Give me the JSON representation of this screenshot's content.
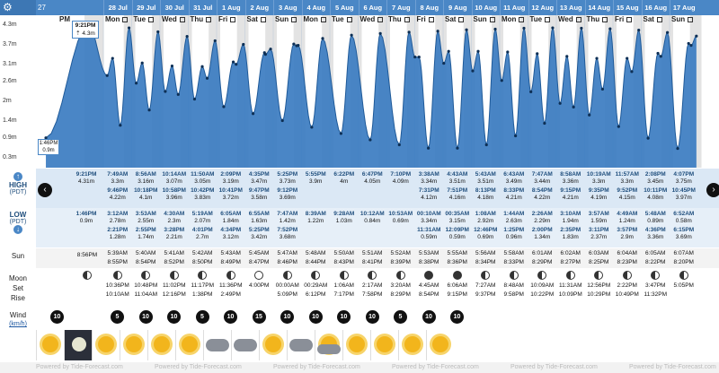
{
  "header": {
    "first_date": "27 Jul",
    "dates": [
      "28 Jul",
      "29 Jul",
      "30 Jul",
      "31 Jul",
      "1 Aug",
      "2 Aug",
      "3 Aug",
      "4 Aug",
      "5 Aug",
      "6 Aug",
      "7 Aug",
      "8 Aug",
      "9 Aug",
      "10 Aug",
      "11 Aug",
      "12 Aug",
      "13 Aug",
      "14 Aug",
      "15 Aug",
      "16 Aug",
      "17 Aug"
    ],
    "first_dayname": "PM",
    "daynames": [
      "Mon",
      "Tue",
      "Wed",
      "Thu",
      "Fri",
      "Sat",
      "Sun",
      "Mon",
      "Tue",
      "Wed",
      "Thu",
      "Fri",
      "Sat",
      "Sun",
      "Mon",
      "Tue",
      "Wed",
      "Thu",
      "Fri",
      "Sat",
      "Sun"
    ]
  },
  "axis": {
    "ticks": [
      "4.3m",
      "3.7m",
      "3.1m",
      "2.6m",
      "2m",
      "1.4m",
      "0.9m",
      "0.3m"
    ]
  },
  "tooltips": {
    "high": {
      "time": "9:21PM",
      "height": "⇡ 4.3m"
    },
    "low": {
      "time": "1:46PM",
      "height": "0.9m"
    }
  },
  "labels": {
    "high": "HIGH",
    "high_sub": "(PDT)",
    "low": "LOW",
    "low_sub": "(PDT)",
    "sun": "Sun",
    "moon": "Moon",
    "set": "Set",
    "rise": "Rise",
    "wind": "Wind",
    "wind_unit": "(km/h)"
  },
  "high_tides": [
    {
      "a": "9:21PM",
      "b": "4.31m",
      "c": "",
      "d": ""
    },
    {
      "a": "7:49AM",
      "b": "3.3m",
      "c": "9:46PM",
      "d": "4.22m"
    },
    {
      "a": "8:56AM",
      "b": "3.16m",
      "c": "10:18PM",
      "d": "4.1m"
    },
    {
      "a": "10:14AM",
      "b": "3.07m",
      "c": "10:58PM",
      "d": "3.96m"
    },
    {
      "a": "11:50AM",
      "b": "3.05m",
      "c": "10:42PM",
      "d": "3.83m"
    },
    {
      "a": "2:09PM",
      "b": "3.19m",
      "c": "10:41PM",
      "d": "3.72m"
    },
    {
      "a": "4:35PM",
      "b": "3.47m",
      "c": "9:47PM",
      "d": "3.58m"
    },
    {
      "a": "5:25PM",
      "b": "3.73m",
      "c": "9:12PM",
      "d": "3.69m"
    },
    {
      "a": "5:55PM",
      "b": "3.9m",
      "c": "",
      "d": ""
    },
    {
      "a": "6:22PM",
      "b": "4m",
      "c": "",
      "d": ""
    },
    {
      "a": "6:47PM",
      "b": "4.05m",
      "c": "",
      "d": ""
    },
    {
      "a": "7:10PM",
      "b": "4.09m",
      "c": "",
      "d": ""
    },
    {
      "a": "3:38AM",
      "b": "3.34m",
      "c": "7:31PM",
      "d": "4.12m"
    },
    {
      "a": "4:43AM",
      "b": "3.51m",
      "c": "7:51PM",
      "d": "4.16m"
    },
    {
      "a": "5:43AM",
      "b": "3.51m",
      "c": "8:13PM",
      "d": "4.18m"
    },
    {
      "a": "6:43AM",
      "b": "3.49m",
      "c": "8:33PM",
      "d": "4.21m"
    },
    {
      "a": "7:47AM",
      "b": "3.44m",
      "c": "8:54PM",
      "d": "4.22m"
    },
    {
      "a": "8:58AM",
      "b": "3.36m",
      "c": "9:15PM",
      "d": "4.21m"
    },
    {
      "a": "10:19AM",
      "b": "3.3m",
      "c": "9:35PM",
      "d": "4.19m"
    },
    {
      "a": "11:57AM",
      "b": "3.3m",
      "c": "9:52PM",
      "d": "4.15m"
    },
    {
      "a": "2:08PM",
      "b": "3.45m",
      "c": "10:11PM",
      "d": "4.08m"
    },
    {
      "a": "4:07PM",
      "b": "3.75m",
      "c": "10:45PM",
      "d": "3.97m"
    }
  ],
  "low_tides": [
    {
      "a": "1:46PM",
      "b": "0.9m",
      "c": "",
      "d": ""
    },
    {
      "a": "3:12AM",
      "b": "2.78m",
      "c": "2:21PM",
      "d": "1.28m"
    },
    {
      "a": "3:53AM",
      "b": "2.55m",
      "c": "2:55PM",
      "d": "1.74m"
    },
    {
      "a": "4:30AM",
      "b": "2.3m",
      "c": "3:28PM",
      "d": "2.21m"
    },
    {
      "a": "5:19AM",
      "b": "2.07m",
      "c": "4:01PM",
      "d": "2.7m"
    },
    {
      "a": "6:05AM",
      "b": "1.84m",
      "c": "4:34PM",
      "d": "3.12m"
    },
    {
      "a": "6:55AM",
      "b": "1.63m",
      "c": "5:25PM",
      "d": "3.42m"
    },
    {
      "a": "7:47AM",
      "b": "1.42m",
      "c": "7:52PM",
      "d": "3.68m"
    },
    {
      "a": "8:39AM",
      "b": "1.22m",
      "c": "",
      "d": ""
    },
    {
      "a": "9:28AM",
      "b": "1.03m",
      "c": "",
      "d": ""
    },
    {
      "a": "10:12AM",
      "b": "0.84m",
      "c": "",
      "d": ""
    },
    {
      "a": "10:53AM",
      "b": "0.69m",
      "c": "",
      "d": ""
    },
    {
      "a": "00:10AM",
      "b": "3.34m",
      "c": "11:31AM",
      "d": "0.59m"
    },
    {
      "a": "00:35AM",
      "b": "3.15m",
      "c": "12:09PM",
      "d": "0.59m"
    },
    {
      "a": "1:08AM",
      "b": "2.92m",
      "c": "12:46PM",
      "d": "0.69m"
    },
    {
      "a": "1:44AM",
      "b": "2.63m",
      "c": "1:25PM",
      "d": "0.96m"
    },
    {
      "a": "2:26AM",
      "b": "2.29m",
      "c": "2:00PM",
      "d": "1.34m"
    },
    {
      "a": "3:10AM",
      "b": "1.94m",
      "c": "2:35PM",
      "d": "1.83m"
    },
    {
      "a": "3:57AM",
      "b": "1.59m",
      "c": "3:11PM",
      "d": "2.37m"
    },
    {
      "a": "4:49AM",
      "b": "1.24m",
      "c": "3:57PM",
      "d": "2.9m"
    },
    {
      "a": "5:48AM",
      "b": "0.89m",
      "c": "4:36PM",
      "d": "3.36m"
    },
    {
      "a": "6:52AM",
      "b": "0.58m",
      "c": "6:15PM",
      "d": "3.69m"
    }
  ],
  "sun": [
    {
      "rise": "",
      "set": "8:56PM"
    },
    {
      "rise": "5:39AM",
      "set": "8:55PM"
    },
    {
      "rise": "5:40AM",
      "set": "8:54PM"
    },
    {
      "rise": "5:41AM",
      "set": "8:52PM"
    },
    {
      "rise": "5:42AM",
      "set": "8:50PM"
    },
    {
      "rise": "5:43AM",
      "set": "8:49PM"
    },
    {
      "rise": "5:45AM",
      "set": "8:47PM"
    },
    {
      "rise": "5:47AM",
      "set": "8:46PM"
    },
    {
      "rise": "5:48AM",
      "set": "8:44PM"
    },
    {
      "rise": "5:50AM",
      "set": "8:43PM"
    },
    {
      "rise": "5:51AM",
      "set": "8:41PM"
    },
    {
      "rise": "5:52AM",
      "set": "8:39PM"
    },
    {
      "rise": "5:53AM",
      "set": "8:38PM"
    },
    {
      "rise": "5:55AM",
      "set": "8:36PM"
    },
    {
      "rise": "5:56AM",
      "set": "8:34PM"
    },
    {
      "rise": "5:58AM",
      "set": "8:33PM"
    },
    {
      "rise": "6:01AM",
      "set": "8:29PM"
    },
    {
      "rise": "6:02AM",
      "set": "8:27PM"
    },
    {
      "rise": "6:03AM",
      "set": "8:25PM"
    },
    {
      "rise": "6:04AM",
      "set": "8:23PM"
    },
    {
      "rise": "6:05AM",
      "set": "8:22PM"
    },
    {
      "rise": "6:07AM",
      "set": "8:20PM"
    }
  ],
  "moon": [
    {
      "phase": "waxing",
      "set": "",
      "rise": ""
    },
    {
      "phase": "waxing",
      "set": "10:36PM",
      "rise": "10:10AM"
    },
    {
      "phase": "waxing",
      "set": "10:48PM",
      "rise": "11:04AM"
    },
    {
      "phase": "waxing",
      "set": "11:02PM",
      "rise": "12:16PM"
    },
    {
      "phase": "waxing",
      "set": "11:17PM",
      "rise": "1:38PM"
    },
    {
      "phase": "waxing",
      "set": "11:36PM",
      "rise": "2:49PM"
    },
    {
      "phase": "full",
      "set": "",
      "rise": "4:00PM"
    },
    {
      "phase": "waning",
      "set": "00:00AM",
      "rise": "5:09PM"
    },
    {
      "phase": "waning",
      "set": "00:29AM",
      "rise": "6:12PM"
    },
    {
      "phase": "waning",
      "set": "1:06AM",
      "rise": "7:17PM"
    },
    {
      "phase": "waning",
      "set": "2:17AM",
      "rise": "7:58PM"
    },
    {
      "phase": "waning",
      "set": "3:20AM",
      "rise": "8:29PM"
    },
    {
      "phase": "new",
      "set": "4:45AM",
      "rise": "8:54PM"
    },
    {
      "phase": "new",
      "set": "6:06AM",
      "rise": "9:15PM"
    },
    {
      "phase": "waxing",
      "set": "7:27AM",
      "rise": "9:37PM"
    },
    {
      "phase": "waxing",
      "set": "8:48AM",
      "rise": "9:58PM"
    },
    {
      "phase": "waxing",
      "set": "10:09AM",
      "rise": "10:22PM"
    },
    {
      "phase": "waxing",
      "set": "11:31AM",
      "rise": "10:09PM"
    },
    {
      "phase": "waxing",
      "set": "12:56PM",
      "rise": "10:29PM"
    },
    {
      "phase": "waxing",
      "set": "2:22PM",
      "rise": "10:49PM"
    },
    {
      "phase": "waxing",
      "set": "3:47PM",
      "rise": "11:32PM"
    },
    {
      "phase": "waxing",
      "set": "5:05PM",
      "rise": ""
    }
  ],
  "wind": [
    "10",
    "5",
    "10",
    "10",
    "5",
    "10",
    "15",
    "10",
    "10",
    "10",
    "10",
    "5",
    "10",
    "10"
  ],
  "weather": [
    "sun",
    "night",
    "sun",
    "sun",
    "sun",
    "sun",
    "cloud",
    "cloud",
    "sun",
    "cloud",
    "cloudsun",
    "sun",
    "sun",
    "sun",
    "sun"
  ],
  "footer": {
    "credit": "Powered by Tide-Forecast.com"
  },
  "colors": {
    "header": "#4a87c6",
    "tide_fill": "#3b7cc1",
    "tide_line": "#1f5a99",
    "band_high": "#dbe8f5",
    "band_low": "#e6eff8"
  },
  "chart_data": {
    "type": "area",
    "xlabel": "",
    "ylabel": "",
    "ylim": [
      0,
      4.6
    ],
    "series": [
      {
        "name": "",
        "x": [
          "27 Jul 1:46PM",
          "27 Jul 9:21PM",
          "28 Jul 3:12AM",
          "28 Jul 7:49AM",
          "28 Jul 2:21PM",
          "28 Jul 9:46PM",
          "29 Jul 3:53AM",
          "29 Jul 8:56AM",
          "29 Jul 2:55PM",
          "29 Jul 10:18PM",
          "30 Jul 4:30AM",
          "30 Jul 10:14AM",
          "30 Jul 3:28PM",
          "30 Jul 10:58PM",
          "31 Jul 5:19AM",
          "31 Jul 11:50AM",
          "31 Jul 4:01PM",
          "31 Jul 10:42PM",
          "1 Aug 6:05AM",
          "1 Aug 2:09PM",
          "1 Aug 4:34PM",
          "1 Aug 10:41PM",
          "2 Aug 6:55AM",
          "2 Aug 4:35PM",
          "2 Aug 5:25PM",
          "2 Aug 9:47PM",
          "3 Aug 7:47AM",
          "3 Aug 5:25PM",
          "3 Aug 7:52PM",
          "3 Aug 9:12PM",
          "4 Aug 8:39AM",
          "4 Aug 5:55PM",
          "5 Aug 9:28AM",
          "5 Aug 6:22PM",
          "6 Aug 10:12AM",
          "6 Aug 6:47PM",
          "7 Aug 10:53AM",
          "7 Aug 7:10PM",
          "8 Aug 00:10AM",
          "8 Aug 3:38AM",
          "8 Aug 11:31AM",
          "8 Aug 7:31PM",
          "9 Aug 00:35AM",
          "9 Aug 4:43AM",
          "9 Aug 12:09PM",
          "9 Aug 7:51PM",
          "10 Aug 1:08AM",
          "10 Aug 5:43AM",
          "10 Aug 12:46PM",
          "10 Aug 8:13PM",
          "11 Aug 1:44AM",
          "11 Aug 6:43AM",
          "11 Aug 1:25PM",
          "11 Aug 8:33PM",
          "12 Aug 2:26AM",
          "12 Aug 7:47AM",
          "12 Aug 2:00PM",
          "12 Aug 8:54PM",
          "13 Aug 3:10AM",
          "13 Aug 8:58AM",
          "13 Aug 2:35PM",
          "13 Aug 9:15PM",
          "14 Aug 3:57AM",
          "14 Aug 10:19AM",
          "14 Aug 3:11PM",
          "14 Aug 9:35PM",
          "15 Aug 4:49AM",
          "15 Aug 11:57AM",
          "15 Aug 3:57PM",
          "15 Aug 9:52PM",
          "16 Aug 5:48AM",
          "16 Aug 2:08PM",
          "16 Aug 4:36PM",
          "16 Aug 10:11PM",
          "17 Aug 6:52AM",
          "17 Aug 4:07PM",
          "17 Aug 6:15PM",
          "17 Aug 10:45PM"
        ],
        "values": [
          0.9,
          4.31,
          2.78,
          3.3,
          1.28,
          4.22,
          2.55,
          3.16,
          1.74,
          4.1,
          2.3,
          3.07,
          2.21,
          3.96,
          2.07,
          3.05,
          2.7,
          3.83,
          1.84,
          3.19,
          3.12,
          3.72,
          1.63,
          3.47,
          3.42,
          3.58,
          1.42,
          3.73,
          3.68,
          3.69,
          1.22,
          3.9,
          1.03,
          4.0,
          0.84,
          4.05,
          0.69,
          4.09,
          3.34,
          3.34,
          0.59,
          4.12,
          3.15,
          3.51,
          0.59,
          4.16,
          2.92,
          3.51,
          0.69,
          4.18,
          2.63,
          3.49,
          0.96,
          4.21,
          2.29,
          3.44,
          1.34,
          4.22,
          1.94,
          3.36,
          1.83,
          4.21,
          1.59,
          3.3,
          2.37,
          4.19,
          1.24,
          3.3,
          2.9,
          4.15,
          0.89,
          3.45,
          3.36,
          4.08,
          0.58,
          3.75,
          3.69,
          3.97
        ]
      }
    ]
  }
}
